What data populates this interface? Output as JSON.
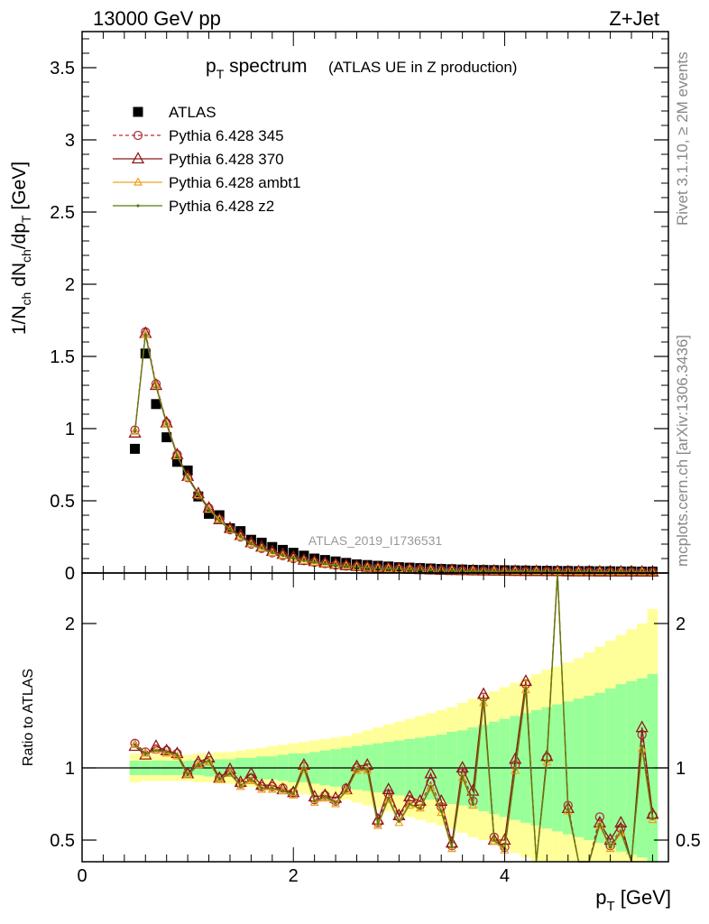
{
  "header": {
    "left": "13000 GeV pp",
    "right": "Z+Jet"
  },
  "side_labels": {
    "top": "Rivet 3.1.10, ≥ 2M events",
    "bottom": "mcplots.cern.ch [arXiv:1306.3436]"
  },
  "analysis_id": "ATLAS_2019_I1736531",
  "chart_data": [
    {
      "type": "scatter",
      "title": "p_T spectrum",
      "title_sub": "(ATLAS UE in Z production)",
      "xlabel": "",
      "ylabel": "1/N_ch dN_ch/dp_T [GeV]",
      "xlim": [
        0,
        5.55
      ],
      "ylim": [
        0,
        3.75
      ],
      "yticks": [
        "0",
        "0.5",
        "1",
        "1.5",
        "2",
        "2.5",
        "3",
        "3.5"
      ],
      "legend_position": "top-left",
      "x": [
        0.5,
        0.6,
        0.7,
        0.8,
        0.9,
        1.0,
        1.1,
        1.2,
        1.3,
        1.4,
        1.5,
        1.6,
        1.7,
        1.8,
        1.9,
        2.0,
        2.1,
        2.2,
        2.3,
        2.4,
        2.5,
        2.6,
        2.7,
        2.8,
        2.9,
        3.0,
        3.1,
        3.2,
        3.3,
        3.4,
        3.5,
        3.6,
        3.7,
        3.8,
        3.9,
        4.0,
        4.1,
        4.2,
        4.3,
        4.4,
        4.5,
        4.6,
        4.7,
        4.8,
        4.9,
        5.0,
        5.1,
        5.2,
        5.3,
        5.4
      ],
      "series": [
        {
          "name": "ATLAS",
          "color": "#000000",
          "marker": "square",
          "values": [
            0.86,
            1.52,
            1.17,
            0.94,
            0.77,
            0.71,
            0.53,
            0.41,
            0.4,
            0.31,
            0.29,
            0.23,
            0.21,
            0.18,
            0.16,
            0.14,
            0.12,
            0.1,
            0.09,
            0.08,
            0.07,
            0.06,
            0.055,
            0.05,
            0.045,
            0.04,
            0.037,
            0.034,
            0.031,
            0.028,
            0.026,
            0.024,
            0.022,
            0.021,
            0.02,
            0.019,
            0.018,
            0.017,
            0.016,
            0.015,
            0.014,
            0.014,
            0.013,
            0.013,
            0.012,
            0.012,
            0.011,
            0.011,
            0.01,
            0.01
          ]
        },
        {
          "name": "Pythia 6.428 345",
          "color": "#b03040",
          "marker": "circle",
          "dashed": true,
          "values": [
            0.99,
            1.67,
            1.31,
            1.04,
            0.82,
            0.66,
            0.54,
            0.45,
            0.37,
            0.3,
            0.25,
            0.2,
            0.17,
            0.14,
            0.12,
            0.1,
            0.085,
            0.075,
            0.065,
            0.055,
            0.048,
            0.043,
            0.038,
            0.034,
            0.031,
            0.028,
            0.025,
            0.023,
            0.021,
            0.019,
            0.017,
            0.016,
            0.015,
            0.014,
            0.013,
            0.012,
            0.011,
            0.011,
            0.01,
            0.01,
            0.009,
            0.009,
            0.009,
            0.008,
            0.008,
            0.008,
            0.008,
            0.007,
            0.007,
            0.007
          ]
        },
        {
          "name": "Pythia 6.428 370",
          "color": "#8b1a1a",
          "marker": "triangle",
          "values": [
            0.97,
            1.66,
            1.3,
            1.04,
            0.82,
            0.67,
            0.55,
            0.45,
            0.37,
            0.31,
            0.26,
            0.21,
            0.18,
            0.15,
            0.13,
            0.11,
            0.09,
            0.08,
            0.07,
            0.06,
            0.052,
            0.046,
            0.041,
            0.036,
            0.033,
            0.029,
            0.026,
            0.024,
            0.022,
            0.02,
            0.018,
            0.017,
            0.016,
            0.015,
            0.014,
            0.013,
            0.012,
            0.011,
            0.011,
            0.01,
            0.01,
            0.009,
            0.009,
            0.009,
            0.008,
            0.008,
            0.008,
            0.008,
            0.007,
            0.007
          ]
        },
        {
          "name": "Pythia 6.428 ambt1",
          "color": "#f0a020",
          "marker": "triangle-small",
          "values": [
            0.98,
            1.65,
            1.3,
            1.03,
            0.81,
            0.66,
            0.54,
            0.44,
            0.37,
            0.3,
            0.25,
            0.2,
            0.17,
            0.14,
            0.12,
            0.1,
            0.085,
            0.074,
            0.064,
            0.055,
            0.048,
            0.042,
            0.037,
            0.033,
            0.03,
            0.027,
            0.024,
            0.022,
            0.02,
            0.018,
            0.017,
            0.015,
            0.014,
            0.013,
            0.012,
            0.012,
            0.011,
            0.01,
            0.01,
            0.009,
            0.009,
            0.009,
            0.008,
            0.008,
            0.008,
            0.007,
            0.007,
            0.007,
            0.007,
            0.006
          ]
        },
        {
          "name": "Pythia 6.428 z2",
          "color": "#5a7a10",
          "marker": "dot",
          "values": [
            0.98,
            1.65,
            1.29,
            1.03,
            0.81,
            0.66,
            0.54,
            0.44,
            0.36,
            0.3,
            0.25,
            0.2,
            0.17,
            0.14,
            0.12,
            0.1,
            0.084,
            0.073,
            0.063,
            0.054,
            0.047,
            0.041,
            0.036,
            0.032,
            0.029,
            0.026,
            0.023,
            0.021,
            0.019,
            0.017,
            0.016,
            0.015,
            0.014,
            0.013,
            0.012,
            0.011,
            0.011,
            0.01,
            0.01,
            0.009,
            0.009,
            0.008,
            0.008,
            0.008,
            0.007,
            0.007,
            0.007,
            0.007,
            0.006,
            0.006
          ]
        }
      ]
    },
    {
      "type": "line",
      "xlabel": "p_T [GeV]",
      "ylabel": "Ratio to ATLAS",
      "xlim": [
        0,
        5.55
      ],
      "ylim": [
        0.35,
        2.35
      ],
      "yticks": [
        "0.5",
        "1",
        "2"
      ],
      "xticks": [
        "0",
        "2",
        "4"
      ],
      "reference_line": 1,
      "bands": {
        "stat_color": "#99ff99",
        "total_color": "#ffff99",
        "stat_halfwidth": [
          0.05,
          0.05,
          0.05,
          0.05,
          0.05,
          0.05,
          0.05,
          0.06,
          0.06,
          0.06,
          0.07,
          0.07,
          0.08,
          0.08,
          0.09,
          0.1,
          0.1,
          0.11,
          0.12,
          0.13,
          0.14,
          0.15,
          0.16,
          0.17,
          0.18,
          0.19,
          0.2,
          0.21,
          0.22,
          0.23,
          0.25,
          0.26,
          0.28,
          0.3,
          0.32,
          0.34,
          0.36,
          0.38,
          0.4,
          0.42,
          0.44,
          0.46,
          0.48,
          0.5,
          0.52,
          0.55,
          0.58,
          0.6,
          0.62,
          0.65
        ],
        "total_halfwidth": [
          0.1,
          0.09,
          0.09,
          0.09,
          0.09,
          0.09,
          0.1,
          0.1,
          0.11,
          0.11,
          0.12,
          0.13,
          0.14,
          0.15,
          0.16,
          0.17,
          0.18,
          0.19,
          0.2,
          0.21,
          0.22,
          0.24,
          0.26,
          0.28,
          0.3,
          0.32,
          0.34,
          0.36,
          0.38,
          0.4,
          0.42,
          0.45,
          0.48,
          0.5,
          0.53,
          0.56,
          0.59,
          0.62,
          0.65,
          0.68,
          0.7,
          0.73,
          0.76,
          0.8,
          0.84,
          0.88,
          0.92,
          0.96,
          1.0,
          1.1
        ]
      },
      "series": [
        {
          "name": "Pythia 6.428 345",
          "color": "#b03040",
          "values": [
            1.17,
            1.11,
            1.13,
            1.12,
            1.1,
            0.96,
            1.03,
            1.05,
            0.93,
            0.97,
            0.89,
            0.93,
            0.87,
            0.87,
            0.86,
            0.83,
            1.01,
            0.78,
            0.81,
            0.77,
            0.86,
            1.0,
            1.0,
            0.62,
            0.82,
            0.66,
            0.78,
            0.74,
            0.9,
            0.73,
            0.46,
            0.97,
            0.77,
            1.49,
            0.52,
            0.45,
            1.02,
            1.58,
            0.3,
            1.07,
            2.4,
            0.74,
            0.3,
            0.35,
            0.66,
            0.46,
            0.58,
            0.3,
            1.23,
            0.67
          ]
        },
        {
          "name": "Pythia 6.428 370",
          "color": "#8b1a1a",
          "values": [
            1.15,
            1.09,
            1.15,
            1.12,
            1.1,
            0.96,
            1.04,
            1.07,
            0.93,
            0.99,
            0.9,
            0.96,
            0.88,
            0.88,
            0.85,
            0.83,
            1.02,
            0.8,
            0.81,
            0.79,
            0.85,
            1.01,
            1.02,
            0.64,
            0.85,
            0.67,
            0.8,
            0.77,
            0.96,
            0.77,
            0.48,
            1.0,
            0.84,
            1.51,
            0.5,
            0.5,
            1.06,
            1.6,
            0.3,
            1.08,
            2.4,
            0.72,
            0.3,
            0.35,
            0.62,
            0.5,
            0.62,
            0.3,
            1.28,
            0.68
          ]
        },
        {
          "name": "Pythia 6.428 ambt1",
          "color": "#f0a020",
          "values": [
            1.16,
            1.1,
            1.12,
            1.1,
            1.08,
            0.95,
            1.02,
            1.04,
            0.92,
            0.96,
            0.87,
            0.91,
            0.85,
            0.85,
            0.84,
            0.81,
            0.99,
            0.76,
            0.79,
            0.75,
            0.84,
            0.98,
            0.98,
            0.6,
            0.78,
            0.62,
            0.74,
            0.72,
            0.86,
            0.69,
            0.44,
            0.93,
            0.74,
            1.45,
            0.49,
            0.43,
            0.98,
            1.54,
            0.3,
            1.04,
            2.4,
            0.7,
            0.3,
            0.33,
            0.6,
            0.44,
            0.55,
            0.3,
            1.13,
            0.64
          ]
        },
        {
          "name": "Pythia 6.428 z2",
          "color": "#5a7a10",
          "values": [
            1.16,
            1.1,
            1.12,
            1.11,
            1.09,
            0.95,
            1.02,
            1.05,
            0.92,
            0.96,
            0.88,
            0.92,
            0.86,
            0.86,
            0.84,
            0.82,
            1.0,
            0.77,
            0.8,
            0.76,
            0.84,
            0.99,
            0.99,
            0.61,
            0.79,
            0.63,
            0.75,
            0.72,
            0.87,
            0.7,
            0.45,
            0.94,
            0.75,
            1.47,
            0.5,
            0.44,
            0.99,
            1.55,
            0.3,
            1.05,
            2.4,
            0.71,
            0.3,
            0.34,
            0.61,
            0.45,
            0.56,
            0.3,
            1.15,
            0.65
          ]
        }
      ]
    }
  ]
}
